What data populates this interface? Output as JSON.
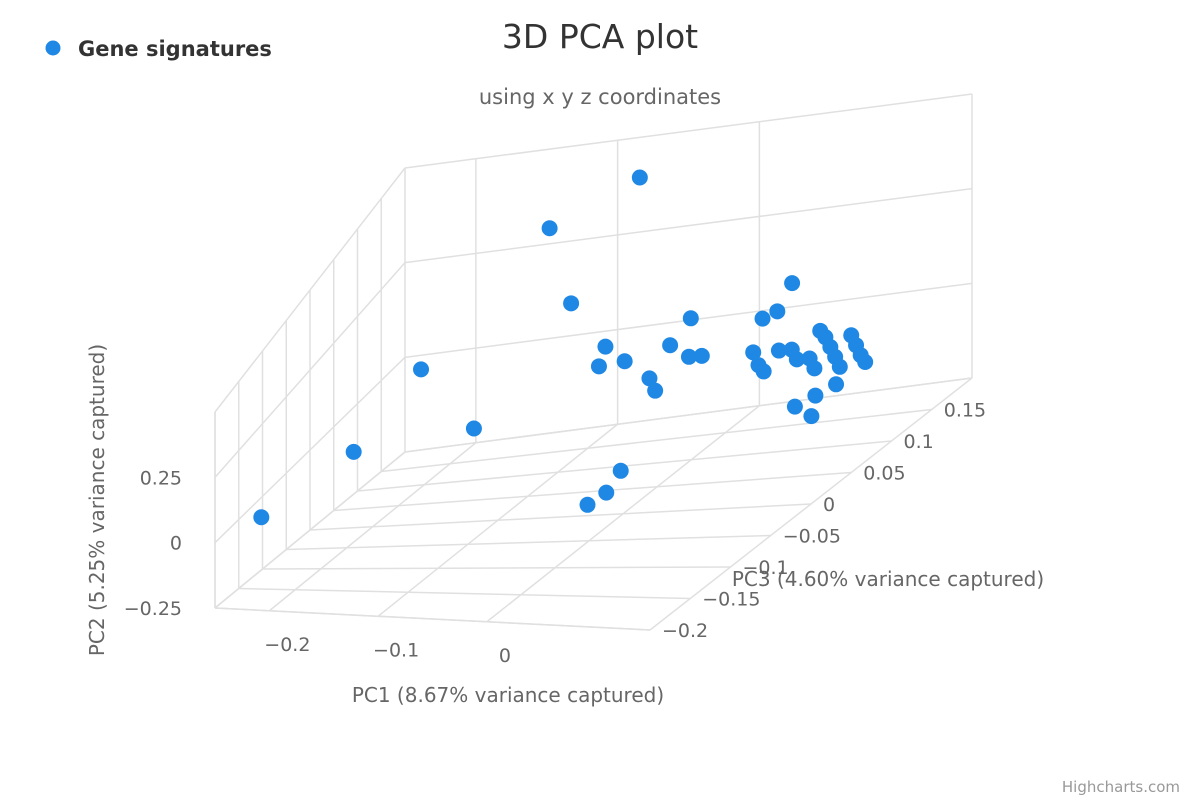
{
  "chart_data": {
    "type": "scatter",
    "title": "3D PCA plot",
    "subtitle": "using x y z coordinates",
    "legend": {
      "position": "top-left",
      "items": [
        {
          "name": "Gene signatures",
          "color": "#1f88e5"
        }
      ]
    },
    "xlabel": "PC1 (8.67% variance captured)",
    "ylabel": "PC2 (5.25% variance captured)",
    "zlabel": "PC3 (4.60% variance captured)",
    "xlim": [
      -0.25,
      0.15
    ],
    "ylim": [
      -0.25,
      0.5
    ],
    "zlim": [
      -0.2,
      0.2
    ],
    "x_ticks": [
      -0.2,
      -0.1,
      0
    ],
    "x_tick_labels": [
      "−0.2",
      "−0.1",
      "0"
    ],
    "y_ticks": [
      -0.25,
      0,
      0.25
    ],
    "y_tick_labels": [
      "−0.25",
      "0",
      "0.25"
    ],
    "z_ticks": [
      -0.2,
      -0.15,
      -0.1,
      -0.05,
      0,
      0.05,
      0.1,
      0.15
    ],
    "z_tick_labels": [
      "−0.2",
      "−0.15",
      "−0.1",
      "−0.05",
      "0",
      "0.05",
      "0.1",
      "0.15"
    ],
    "grid": true,
    "series": [
      {
        "name": "Gene signatures",
        "color": "#1f88e5",
        "points": [
          [
            -0.23,
            0.01,
            -0.15
          ],
          [
            -0.14,
            0.32,
            0.18
          ],
          [
            -0.08,
            0.41,
            0.19
          ],
          [
            -0.17,
            0.2,
            0.02
          ],
          [
            -0.19,
            0.08,
            -0.06
          ],
          [
            -0.1,
            0.11,
            -0.04
          ],
          [
            -0.09,
            0.23,
            0.1
          ],
          [
            -0.04,
            0.18,
            0.05
          ],
          [
            -0.04,
            0.14,
            0.04
          ],
          [
            -0.02,
            0.15,
            0.04
          ],
          [
            0.01,
            0.19,
            0.08
          ],
          [
            0.01,
            0.17,
            0.05
          ],
          [
            0.01,
            0.13,
            0.02
          ],
          [
            0.02,
            0.11,
            0.01
          ],
          [
            0.03,
            0.15,
            0.04
          ],
          [
            0.04,
            0.15,
            0.04
          ],
          [
            0.04,
            0.01,
            -0.12
          ],
          [
            0.05,
            0.06,
            -0.09
          ],
          [
            0.05,
            0.03,
            -0.11
          ],
          [
            0.07,
            0.21,
            0.11
          ],
          [
            0.07,
            0.17,
            0.09
          ],
          [
            0.07,
            0.19,
            0.07
          ],
          [
            0.08,
            0.15,
            0.04
          ],
          [
            0.09,
            0.13,
            0.03
          ],
          [
            0.1,
            0.15,
            0.04
          ],
          [
            0.1,
            0.13,
            0.02
          ],
          [
            0.11,
            0.15,
            0.04
          ],
          [
            0.12,
            0.14,
            0.03
          ],
          [
            0.12,
            0.16,
            0.06
          ],
          [
            0.13,
            0.14,
            0.03
          ],
          [
            0.13,
            0.16,
            0.05
          ],
          [
            0.14,
            0.15,
            0.04
          ],
          [
            0.14,
            0.13,
            0.02
          ],
          [
            0.15,
            0.14,
            0.03
          ],
          [
            0.15,
            0.16,
            0.05
          ],
          [
            0.16,
            0.15,
            0.04
          ],
          [
            0.16,
            0.13,
            0.02
          ],
          [
            0.17,
            0.14,
            0.03
          ],
          [
            0.17,
            0.12,
            0.0
          ],
          [
            0.18,
            0.14,
            0.02
          ],
          [
            0.15,
            0.1,
            -0.02
          ],
          [
            0.16,
            0.11,
            -0.01
          ],
          [
            0.17,
            0.09,
            -0.03
          ]
        ]
      }
    ]
  },
  "credits": "Highcharts.com"
}
